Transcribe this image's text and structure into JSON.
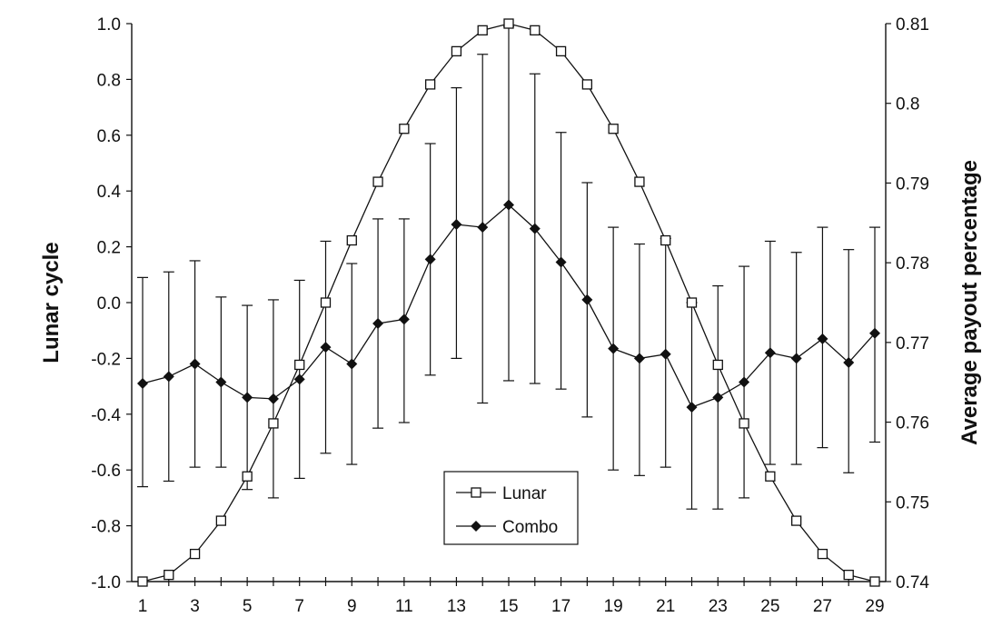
{
  "chart_data": {
    "type": "line",
    "x": [
      1,
      2,
      3,
      4,
      5,
      6,
      7,
      8,
      9,
      10,
      11,
      12,
      13,
      14,
      15,
      16,
      17,
      18,
      19,
      20,
      21,
      22,
      23,
      24,
      25,
      26,
      27,
      28,
      29
    ],
    "x_ticks": [
      1,
      3,
      5,
      7,
      9,
      11,
      13,
      15,
      17,
      19,
      21,
      23,
      25,
      27,
      29
    ],
    "xlim": [
      1,
      29
    ],
    "y_left": {
      "label": "Lunar cycle",
      "ylim": [
        -1.0,
        1.0
      ],
      "ticks": [
        "-1.0",
        "-0.8",
        "-0.6",
        "-0.4",
        "-0.2",
        "0.0",
        "0.2",
        "0.4",
        "0.6",
        "0.8",
        "1.0"
      ]
    },
    "y_right": {
      "label": "Average payout percentage",
      "ylim": [
        0.74,
        0.81
      ],
      "ticks": [
        "0.74",
        "0.75",
        "0.76",
        "0.77",
        "0.78",
        "0.79",
        "0.8",
        "0.81"
      ]
    },
    "series": [
      {
        "name": "Lunar",
        "axis": "left",
        "marker": "square-open",
        "color": "#111111",
        "values": [
          -1.0,
          -0.976,
          -0.901,
          -0.782,
          -0.623,
          -0.433,
          -0.223,
          0.0,
          0.223,
          0.433,
          0.623,
          0.782,
          0.901,
          0.976,
          1.0,
          0.976,
          0.901,
          0.782,
          0.623,
          0.433,
          0.223,
          0.0,
          -0.223,
          -0.433,
          -0.623,
          -0.782,
          -0.901,
          -0.976,
          -1.0
        ]
      },
      {
        "name": "Combo",
        "axis": "left",
        "marker": "diamond-filled",
        "color": "#111111",
        "values": [
          -0.29,
          -0.265,
          -0.22,
          -0.285,
          -0.34,
          -0.345,
          -0.275,
          -0.16,
          -0.22,
          -0.075,
          -0.06,
          0.155,
          0.28,
          0.27,
          0.35,
          0.265,
          0.145,
          0.01,
          -0.165,
          -0.2,
          -0.185,
          -0.375,
          -0.34,
          -0.285,
          -0.18,
          -0.2,
          -0.13,
          -0.215,
          -0.11
        ],
        "error_upper": [
          0.09,
          0.11,
          0.15,
          0.02,
          -0.01,
          0.01,
          0.08,
          0.22,
          0.14,
          0.3,
          0.3,
          0.57,
          0.77,
          0.89,
          0.99,
          0.82,
          0.61,
          0.43,
          0.27,
          0.21,
          0.23,
          0.0,
          0.06,
          0.13,
          0.22,
          0.18,
          0.27,
          0.19,
          0.27
        ],
        "error_lower": [
          -0.66,
          -0.64,
          -0.59,
          -0.59,
          -0.67,
          -0.7,
          -0.63,
          -0.54,
          -0.58,
          -0.45,
          -0.43,
          -0.26,
          -0.2,
          -0.36,
          -0.28,
          -0.29,
          -0.31,
          -0.41,
          -0.6,
          -0.62,
          -0.59,
          -0.74,
          -0.74,
          -0.7,
          -0.58,
          -0.58,
          -0.52,
          -0.61,
          -0.5
        ]
      }
    ],
    "legend_position": "inside-bottom-center",
    "grid": false
  }
}
